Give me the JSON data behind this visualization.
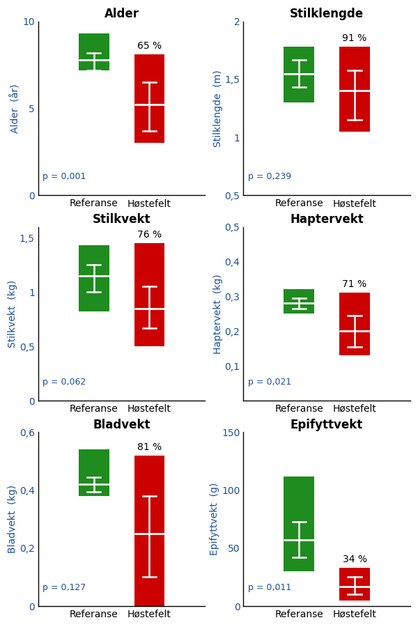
{
  "panels": [
    {
      "title": "Alder",
      "ylabel": "Alder  (år)",
      "ylim": [
        0,
        10
      ],
      "yticks": [
        0,
        5,
        10
      ],
      "yticklabels": [
        "0",
        "5",
        "10"
      ],
      "p_value": "p = 0,001",
      "p_underline": true,
      "percent": "65 %",
      "ref": {
        "q1": 7.2,
        "median": 7.8,
        "q3": 9.3,
        "whisker_lo": 7.2,
        "whisker_hi": 8.2
      },
      "hos": {
        "q1": 3.0,
        "median": 5.2,
        "q3": 8.1,
        "whisker_lo": 3.7,
        "whisker_hi": 6.5
      }
    },
    {
      "title": "Stilklengde",
      "ylabel": "Stilklengde  (m)",
      "ylim": [
        0.5,
        2.0
      ],
      "yticks": [
        0.5,
        1.0,
        1.5,
        2.0
      ],
      "yticklabels": [
        "0,5",
        "1",
        "1,5",
        "2"
      ],
      "p_value": "p = 0,239",
      "p_underline": false,
      "percent": "91 %",
      "ref": {
        "q1": 1.3,
        "median": 1.55,
        "q3": 1.78,
        "whisker_lo": 1.43,
        "whisker_hi": 1.67
      },
      "hos": {
        "q1": 1.05,
        "median": 1.4,
        "q3": 1.78,
        "whisker_lo": 1.15,
        "whisker_hi": 1.58
      }
    },
    {
      "title": "Stilkvekt",
      "ylabel": "Stilkvekt  (kg)",
      "ylim": [
        0,
        1.6
      ],
      "yticks": [
        0,
        0.5,
        1.0,
        1.5
      ],
      "yticklabels": [
        "0",
        "0,5",
        "1",
        "1,5"
      ],
      "p_value": "p = 0,062",
      "p_underline": false,
      "percent": "76 %",
      "ref": {
        "q1": 0.82,
        "median": 1.15,
        "q3": 1.43,
        "whisker_lo": 1.0,
        "whisker_hi": 1.25
      },
      "hos": {
        "q1": 0.5,
        "median": 0.85,
        "q3": 1.45,
        "whisker_lo": 0.67,
        "whisker_hi": 1.05
      }
    },
    {
      "title": "Haptervekt",
      "ylabel": "Haptervekt  (kg)",
      "ylim": [
        0.0,
        0.5
      ],
      "yticks": [
        0.1,
        0.2,
        0.3,
        0.4,
        0.5
      ],
      "yticklabels": [
        "0,1",
        "0,2",
        "0,3",
        "0,4",
        "0,5"
      ],
      "p_value": "p = 0,021",
      "p_underline": true,
      "percent": "71 %",
      "ref": {
        "q1": 0.25,
        "median": 0.28,
        "q3": 0.32,
        "whisker_lo": 0.265,
        "whisker_hi": 0.295
      },
      "hos": {
        "q1": 0.13,
        "median": 0.2,
        "q3": 0.31,
        "whisker_lo": 0.155,
        "whisker_hi": 0.245
      }
    },
    {
      "title": "Bladvekt",
      "ylabel": "Bladvekt  (kg)",
      "ylim": [
        0,
        0.6
      ],
      "yticks": [
        0,
        0.2,
        0.4,
        0.6
      ],
      "yticklabels": [
        "0",
        "0,2",
        "0,4",
        "0,6"
      ],
      "p_value": "p = 0,127",
      "p_underline": false,
      "percent": "81 %",
      "ref": {
        "q1": 0.38,
        "median": 0.42,
        "q3": 0.54,
        "whisker_lo": 0.395,
        "whisker_hi": 0.445
      },
      "hos": {
        "q1": 0.0,
        "median": 0.25,
        "q3": 0.52,
        "whisker_lo": 0.1,
        "whisker_hi": 0.38
      }
    },
    {
      "title": "Epifyttvekt",
      "ylabel": "Epifyttvekt  (g)",
      "ylim": [
        0,
        150
      ],
      "yticks": [
        0,
        50,
        100,
        150
      ],
      "yticklabels": [
        "0",
        "50",
        "100",
        "150"
      ],
      "p_value": "p = 0,011",
      "p_underline": true,
      "percent": "34 %",
      "ref": {
        "q1": 30,
        "median": 57,
        "q3": 112,
        "whisker_lo": 42,
        "whisker_hi": 73
      },
      "hos": {
        "q1": 5,
        "median": 17,
        "q3": 33,
        "whisker_lo": 10,
        "whisker_hi": 25
      }
    }
  ],
  "color_ref": "#1e8c1e",
  "color_hos": "#cc0000",
  "color_text": "#1a4fa0",
  "color_title": "#1a1a1a",
  "xlabel_ref": "Referanse",
  "xlabel_hos": "Høstefelt"
}
